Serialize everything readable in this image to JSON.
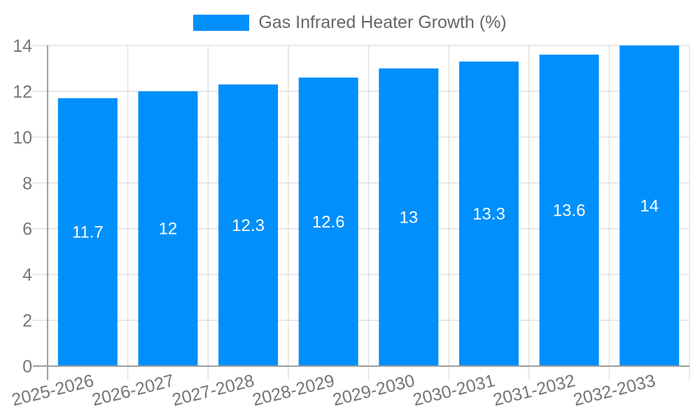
{
  "legend": {
    "label": "Gas Infrared Heater Growth (%)",
    "swatch_color": "#008ffb"
  },
  "chart_data": {
    "type": "bar",
    "title": "Gas Infrared Heater Growth (%)",
    "categories": [
      "2025-2026",
      "2026-2027",
      "2027-2028",
      "2028-2029",
      "2029-2030",
      "2030-2031",
      "2031-2032",
      "2032-2033"
    ],
    "values": [
      11.7,
      12,
      12.3,
      12.6,
      13,
      13.3,
      13.6,
      14
    ],
    "bar_labels": [
      "11.7",
      "12",
      "12.3",
      "12.6",
      "13",
      "13.3",
      "13.6",
      "14"
    ],
    "xlabel": "",
    "ylabel": "",
    "ylim": [
      0,
      14
    ],
    "ytick_step": 2,
    "ytick_labels": [
      "0",
      "2",
      "4",
      "6",
      "8",
      "10",
      "12",
      "14"
    ],
    "grid": true,
    "legend_position": "top",
    "x_label_rotation_deg": -14,
    "colors": {
      "bar": "#008ffb",
      "grid": "#e0e0e0",
      "axis": "#9e9e9e",
      "tick_text": "#757575",
      "legend_text": "#666666",
      "bar_label_text": "#ffffff"
    }
  }
}
